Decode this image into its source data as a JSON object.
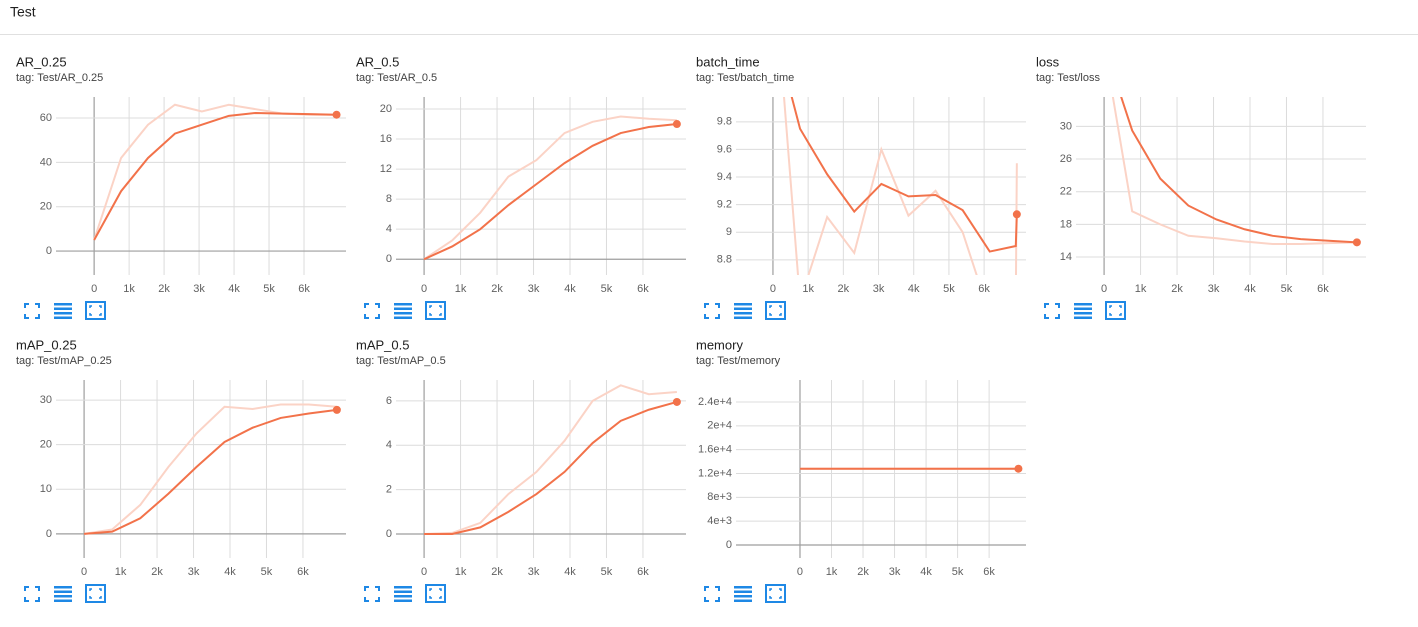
{
  "header": {
    "title": "Test"
  },
  "chart_data": [
    {
      "type": "line",
      "title": "AR_0.25",
      "subtitle": "tag: Test/AR_0.25",
      "x": [
        0,
        770,
        1540,
        2310,
        3080,
        3850,
        4620,
        5390,
        6160,
        6930
      ],
      "series": [
        {
          "color": "#fbd3c6",
          "values": [
            5,
            42,
            57,
            66,
            63,
            66,
            64,
            62,
            61.5,
            61.5
          ]
        },
        {
          "color": "#f2724a",
          "values": [
            5,
            27,
            42,
            53,
            57,
            61,
            62.3,
            62,
            61.8,
            61.5
          ]
        }
      ],
      "xlim": [
        -1090,
        7200
      ],
      "xticks": [
        0,
        {
          "value": 1000,
          "label": "1k"
        },
        {
          "value": 2000,
          "label": "2k"
        },
        {
          "value": 3000,
          "label": "3k"
        },
        {
          "value": 4000,
          "label": "4k"
        },
        {
          "value": 5000,
          "label": "5k"
        },
        {
          "value": 6000,
          "label": "6k"
        }
      ],
      "ylim": [
        -10.8,
        69.5
      ],
      "yticks": [
        0,
        20,
        40,
        60
      ],
      "grid": true
    },
    {
      "type": "line",
      "title": "AR_0.5",
      "subtitle": "tag: Test/AR_0.5",
      "x": [
        0,
        770,
        1540,
        2310,
        3080,
        3850,
        4620,
        5390,
        6160,
        6930
      ],
      "series": [
        {
          "color": "#fbd3c6",
          "values": [
            0,
            2.5,
            6.2,
            11,
            13.2,
            16.8,
            18.3,
            19,
            18.7,
            18.5
          ]
        },
        {
          "color": "#f2724a",
          "values": [
            0,
            1.7,
            4,
            7.2,
            10,
            12.8,
            15.1,
            16.8,
            17.6,
            18
          ]
        }
      ],
      "xlim": [
        -770,
        7180
      ],
      "xticks": [
        0,
        {
          "value": 1000,
          "label": "1k"
        },
        {
          "value": 2000,
          "label": "2k"
        },
        {
          "value": 3000,
          "label": "3k"
        },
        {
          "value": 4000,
          "label": "4k"
        },
        {
          "value": 5000,
          "label": "5k"
        },
        {
          "value": 6000,
          "label": "6k"
        }
      ],
      "ylim": [
        -2.1,
        21.6
      ],
      "yticks": [
        0,
        4,
        8,
        12,
        16,
        20
      ],
      "grid": true
    },
    {
      "type": "line",
      "title": "batch_time",
      "subtitle": "tag: Test/batch_time",
      "x": [
        0,
        770,
        1540,
        2310,
        3080,
        3850,
        4620,
        5390,
        6160,
        6900,
        6930
      ],
      "series": [
        {
          "color": "#fbd3c6",
          "values": [
            11,
            8.5,
            9.11,
            8.85,
            9.6,
            9.12,
            9.3,
            9.0,
            8.4,
            8.5,
            9.5
          ]
        },
        {
          "color": "#f2724a",
          "values": [
            10.5,
            9.75,
            9.42,
            9.15,
            9.35,
            9.26,
            9.27,
            9.16,
            8.86,
            8.9,
            9.13
          ]
        }
      ],
      "xlim": [
        -1050,
        7190
      ],
      "xticks": [
        0,
        {
          "value": 1000,
          "label": "1k"
        },
        {
          "value": 2000,
          "label": "2k"
        },
        {
          "value": 3000,
          "label": "3k"
        },
        {
          "value": 4000,
          "label": "4k"
        },
        {
          "value": 5000,
          "label": "5k"
        },
        {
          "value": 6000,
          "label": "6k"
        }
      ],
      "ylim": [
        8.69,
        9.98
      ],
      "yticks": [
        8.8,
        9,
        9.2,
        9.4,
        9.6,
        9.8
      ],
      "grid": true
    },
    {
      "type": "line",
      "title": "loss",
      "subtitle": "tag: Test/loss",
      "x": [
        0,
        770,
        1540,
        2310,
        3080,
        3850,
        4620,
        5390,
        6160,
        6930
      ],
      "series": [
        {
          "color": "#fbd3c6",
          "values": [
            40,
            19.6,
            18,
            16.6,
            16.3,
            15.9,
            15.6,
            15.6,
            15.7,
            15.8
          ]
        },
        {
          "color": "#f2724a",
          "values": [
            40,
            29.5,
            23.6,
            20.3,
            18.6,
            17.4,
            16.6,
            16.2,
            16,
            15.8
          ]
        }
      ],
      "xlim": [
        -770,
        7180
      ],
      "xticks": [
        0,
        {
          "value": 1000,
          "label": "1k"
        },
        {
          "value": 2000,
          "label": "2k"
        },
        {
          "value": 3000,
          "label": "3k"
        },
        {
          "value": 4000,
          "label": "4k"
        },
        {
          "value": 5000,
          "label": "5k"
        },
        {
          "value": 6000,
          "label": "6k"
        }
      ],
      "ylim": [
        11.8,
        33.6
      ],
      "yticks": [
        14,
        18,
        22,
        26,
        30
      ],
      "grid": true
    },
    {
      "type": "line",
      "title": "mAP_0.25",
      "subtitle": "tag: Test/mAP_0.25",
      "x": [
        0,
        770,
        1540,
        2310,
        3080,
        3850,
        4620,
        5390,
        6160,
        6930
      ],
      "series": [
        {
          "color": "#fbd3c6",
          "values": [
            0,
            1,
            6.5,
            15,
            22.5,
            28.5,
            28,
            29,
            29,
            28.5
          ]
        },
        {
          "color": "#f2724a",
          "values": [
            0,
            0.5,
            3.5,
            9,
            15,
            20.6,
            23.8,
            26,
            27,
            27.8
          ]
        }
      ],
      "xlim": [
        -770,
        7180
      ],
      "xticks": [
        0,
        {
          "value": 1000,
          "label": "1k"
        },
        {
          "value": 2000,
          "label": "2k"
        },
        {
          "value": 3000,
          "label": "3k"
        },
        {
          "value": 4000,
          "label": "4k"
        },
        {
          "value": 5000,
          "label": "5k"
        },
        {
          "value": 6000,
          "label": "6k"
        }
      ],
      "ylim": [
        -5.4,
        34.5
      ],
      "yticks": [
        0,
        10,
        20,
        30
      ],
      "grid": true
    },
    {
      "type": "line",
      "title": "mAP_0.5",
      "subtitle": "tag: Test/mAP_0.5",
      "x": [
        0,
        770,
        1540,
        2310,
        3080,
        3850,
        4620,
        5390,
        6160,
        6930
      ],
      "series": [
        {
          "color": "#fbd3c6",
          "values": [
            0,
            0.05,
            0.5,
            1.8,
            2.8,
            4.2,
            6,
            6.7,
            6.3,
            6.4
          ]
        },
        {
          "color": "#f2724a",
          "values": [
            0,
            0,
            0.3,
            1,
            1.8,
            2.8,
            4.1,
            5.1,
            5.6,
            5.95
          ]
        }
      ],
      "xlim": [
        -770,
        7180
      ],
      "xticks": [
        0,
        {
          "value": 1000,
          "label": "1k"
        },
        {
          "value": 2000,
          "label": "2k"
        },
        {
          "value": 3000,
          "label": "3k"
        },
        {
          "value": 4000,
          "label": "4k"
        },
        {
          "value": 5000,
          "label": "5k"
        },
        {
          "value": 6000,
          "label": "6k"
        }
      ],
      "ylim": [
        -1.08,
        6.94
      ],
      "yticks": [
        0,
        2,
        4,
        6
      ],
      "grid": true
    },
    {
      "type": "line",
      "title": "memory",
      "subtitle": "tag: Test/memory",
      "x": [
        0,
        770,
        1540,
        2310,
        3080,
        3850,
        4620,
        5390,
        6160,
        6930
      ],
      "series": [
        {
          "color": "#fbd3c6",
          "values": [
            12800,
            12800,
            12800,
            12800,
            12800,
            12800,
            12800,
            12800,
            12800,
            12800
          ]
        },
        {
          "color": "#f2724a",
          "values": [
            12800,
            12800,
            12800,
            12800,
            12800,
            12800,
            12800,
            12800,
            12800,
            12800
          ]
        }
      ],
      "xlim": [
        -2030,
        7170
      ],
      "xticks": [
        0,
        {
          "value": 1000,
          "label": "1k"
        },
        {
          "value": 2000,
          "label": "2k"
        },
        {
          "value": 3000,
          "label": "3k"
        },
        {
          "value": 4000,
          "label": "4k"
        },
        {
          "value": 5000,
          "label": "5k"
        },
        {
          "value": 6000,
          "label": "6k"
        }
      ],
      "ylim": [
        -2180,
        27690
      ],
      "yticks": [
        0,
        {
          "value": 4000,
          "label": "4e+3"
        },
        {
          "value": 8000,
          "label": "8e+3"
        },
        {
          "value": 12000,
          "label": "1.2e+4"
        },
        {
          "value": 16000,
          "label": "1.6e+4"
        },
        {
          "value": 20000,
          "label": "2e+4"
        },
        {
          "value": 24000,
          "label": "2.4e+4"
        }
      ],
      "grid": true
    }
  ]
}
